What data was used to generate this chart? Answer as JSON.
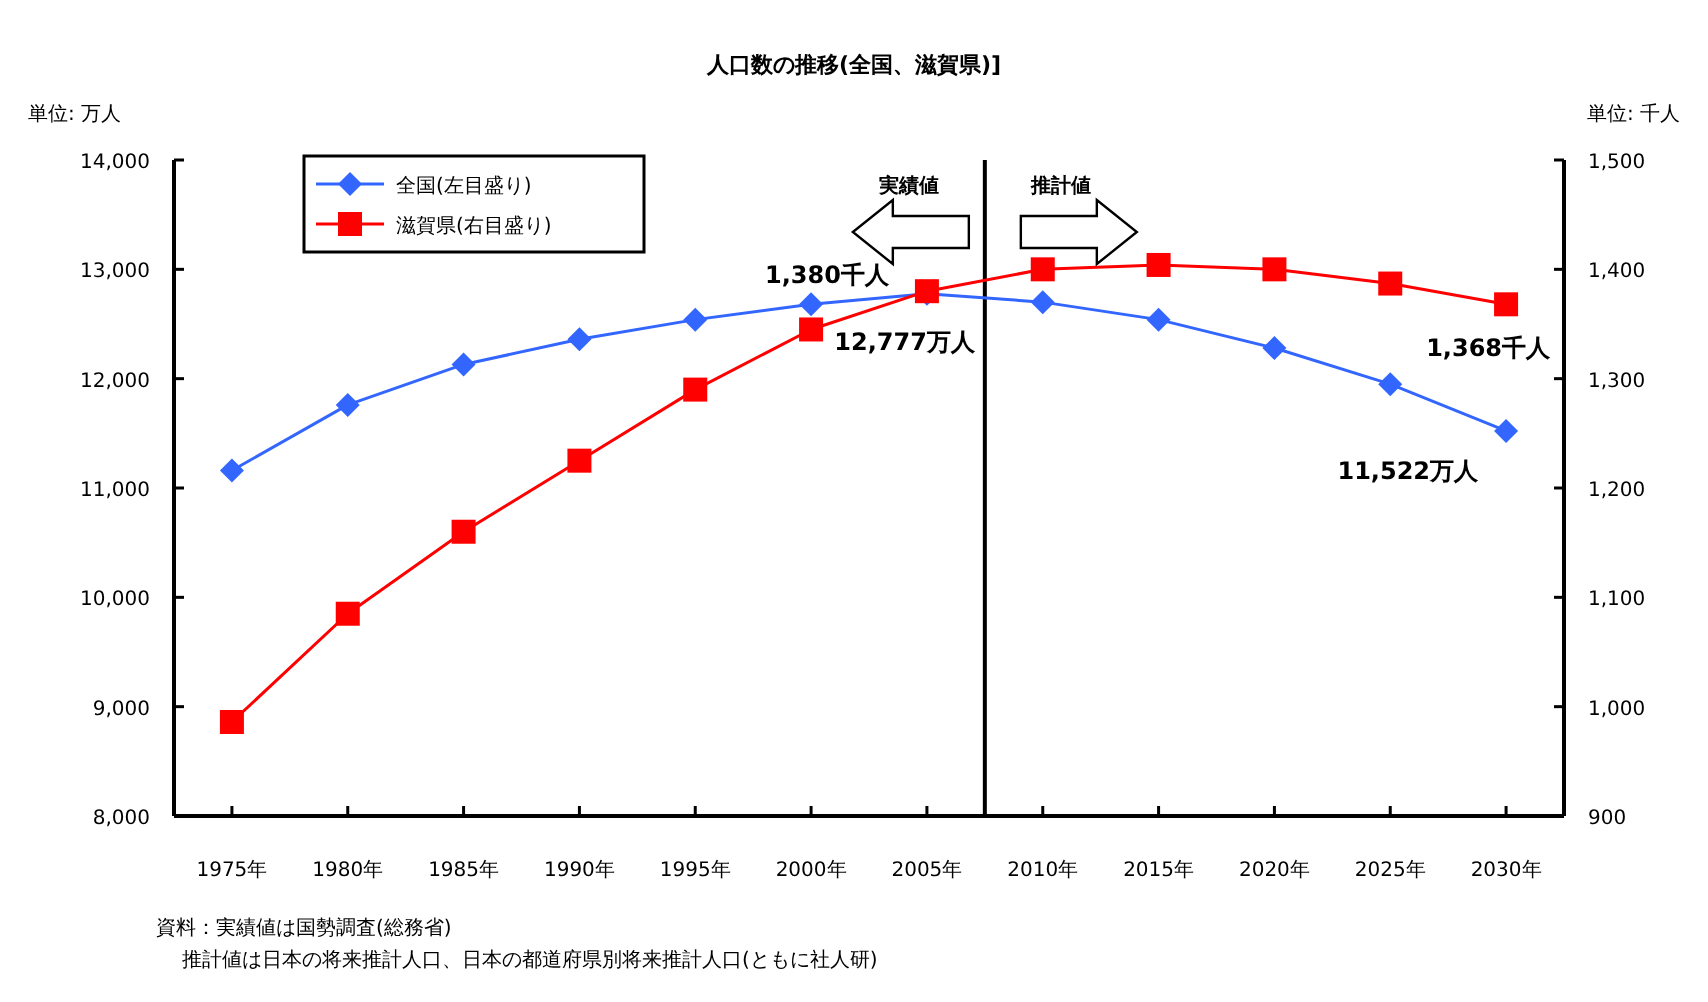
{
  "chart_data": {
    "type": "line",
    "title": "人口数の推移(全国、滋賀県)]",
    "ylabel": "単位: 万人",
    "y2label": "単位: 千人",
    "x": [
      1975,
      1980,
      1985,
      1990,
      1995,
      2000,
      2005,
      2010,
      2015,
      2020,
      2025,
      2030
    ],
    "xlim": [
      1972.5,
      2032.5
    ],
    "xticks": [
      {
        "value": 1975,
        "label": "1975年"
      },
      {
        "value": 1980,
        "label": "1980年"
      },
      {
        "value": 1985,
        "label": "1985年"
      },
      {
        "value": 1990,
        "label": "1990年"
      },
      {
        "value": 1995,
        "label": "1995年"
      },
      {
        "value": 2000,
        "label": "2000年"
      },
      {
        "value": 2005,
        "label": "2005年"
      },
      {
        "value": 2010,
        "label": "2010年"
      },
      {
        "value": 2015,
        "label": "2015年"
      },
      {
        "value": 2020,
        "label": "2020年"
      },
      {
        "value": 2025,
        "label": "2025年"
      },
      {
        "value": 2030,
        "label": "2030年"
      }
    ],
    "ylim": [
      8000,
      14000
    ],
    "yticks": [
      {
        "value": 8000,
        "label": "8,000"
      },
      {
        "value": 9000,
        "label": "9,000"
      },
      {
        "value": 10000,
        "label": "10,000"
      },
      {
        "value": 11000,
        "label": "11,000"
      },
      {
        "value": 12000,
        "label": "12,000"
      },
      {
        "value": 13000,
        "label": "13,000"
      },
      {
        "value": 14000,
        "label": "14,000"
      }
    ],
    "y2lim": [
      900,
      1500
    ],
    "y2ticks": [
      900,
      {
        "value": 1000,
        "label": "1,000"
      },
      {
        "value": 1100,
        "label": "1,100"
      },
      {
        "value": 1200,
        "label": "1,200"
      },
      {
        "value": 1300,
        "label": "1,300"
      },
      {
        "value": 1400,
        "label": "1,400"
      },
      {
        "value": 1500,
        "label": "1,500"
      }
    ],
    "series": [
      {
        "name": "全国(左目盛り)",
        "color": "#3366ff",
        "marker": "diamond",
        "values": [
          11160,
          11760,
          12130,
          12360,
          12540,
          12680,
          12777,
          12700,
          12540,
          12280,
          11950,
          11522
        ]
      },
      {
        "name": "滋賀県(右目盛り)",
        "color": "#ff0000",
        "marker": "square",
        "axis": "y2",
        "values": [
          986,
          1085,
          1160,
          1225,
          1290,
          1345,
          1380,
          1400,
          1404,
          1400,
          1387,
          1368
        ]
      }
    ],
    "ref_lines": [
      {
        "axis": "x",
        "value": 2007.5,
        "color": "#000000"
      }
    ],
    "annotations": [
      "実績値",
      "推計値",
      "1,380千人",
      "12,777万人",
      "1,368千人",
      "11,522万人",
      "資料：実績値は国勢調査(総務省)",
      "推計値は日本の将来推計人口、日本の都道府県別将来推計人口(ともに社人研)"
    ],
    "legend": "top left",
    "grid": false,
    "line_style": "solid"
  }
}
